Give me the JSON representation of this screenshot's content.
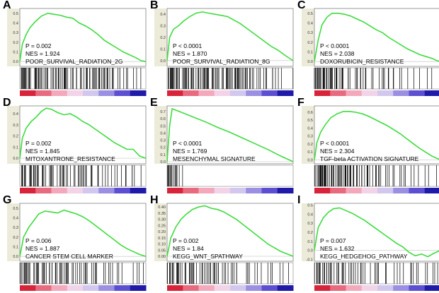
{
  "colors": {
    "curve": "#3ddc3d",
    "hit": "#000000",
    "grid": "#cfcfcf",
    "axis": "#808080",
    "panel_bg": "#ffffff",
    "axis_strip": "#ecebd9",
    "rank_colors": [
      "#d8243a",
      "#e86a7e",
      "#f3a9bb",
      "#f2d3e8",
      "#d2c8ef",
      "#9a8fe2",
      "#5d4fd2",
      "#1f1aa8"
    ]
  },
  "chart_data": [
    {
      "panel": "A",
      "type": "line",
      "yticks": [
        "0.5",
        "0.4",
        "0.3",
        "0.2",
        "0.1",
        "0.0"
      ],
      "ylim": [
        -0.05,
        0.55
      ],
      "p_text": "P = 0.002",
      "nes_text": "NES = 1.924",
      "gene_set": "POOR_SURVIVAL_RADIATION_2G",
      "x": [
        0,
        0.02,
        0.05,
        0.08,
        0.12,
        0.17,
        0.22,
        0.27,
        0.32,
        0.37,
        0.42,
        0.47,
        0.52,
        0.57,
        0.62,
        0.67,
        0.72,
        0.77,
        0.82,
        0.87,
        0.92,
        0.96,
        1.0
      ],
      "es": [
        0,
        0.18,
        0.28,
        0.35,
        0.41,
        0.47,
        0.5,
        0.49,
        0.48,
        0.46,
        0.45,
        0.4,
        0.37,
        0.33,
        0.28,
        0.22,
        0.18,
        0.14,
        0.1,
        0.07,
        0.04,
        0.01,
        0.0
      ],
      "hit_density": [
        0.9,
        0.6,
        0.8,
        0.5,
        0.4,
        0.5,
        0.6,
        0.7,
        0.4,
        0.4,
        0.5,
        0.6,
        0.8,
        0.7,
        0.4,
        0.3,
        0.2,
        0.1,
        0.2,
        0.1
      ]
    },
    {
      "panel": "B",
      "type": "line",
      "yticks": [
        "0.4",
        "0.3",
        "0.2",
        "0.1",
        "0.0"
      ],
      "ylim": [
        -0.05,
        0.45
      ],
      "p_text": "P < 0.0001",
      "nes_text": "NES = 1.870",
      "gene_set": "POOR_SURVIVAL_RADIATION_8G",
      "x": [
        0,
        0.02,
        0.05,
        0.09,
        0.13,
        0.18,
        0.23,
        0.28,
        0.33,
        0.38,
        0.43,
        0.48,
        0.53,
        0.58,
        0.63,
        0.68,
        0.73,
        0.78,
        0.83,
        0.88,
        0.93,
        0.97,
        1.0
      ],
      "es": [
        0,
        0.2,
        0.27,
        0.3,
        0.34,
        0.38,
        0.41,
        0.42,
        0.41,
        0.4,
        0.39,
        0.38,
        0.35,
        0.32,
        0.28,
        0.24,
        0.2,
        0.16,
        0.12,
        0.09,
        0.05,
        0.02,
        0.0
      ],
      "hit_density": [
        0.9,
        0.7,
        0.8,
        0.6,
        0.5,
        0.7,
        0.7,
        0.8,
        0.5,
        0.5,
        0.7,
        0.8,
        0.6,
        0.4,
        0.3,
        0.3,
        0.2,
        0.2,
        0.1,
        0.1
      ]
    },
    {
      "panel": "C",
      "type": "line",
      "yticks": [
        "0.5",
        "0.4",
        "0.3",
        "0.2",
        "0.1",
        "0.0"
      ],
      "ylim": [
        -0.05,
        0.55
      ],
      "p_text": "P < 0.0001",
      "nes_text": "NES = 2.038",
      "gene_set": "DOXORUBICIN_RESISTANCE",
      "x": [
        0,
        0.03,
        0.06,
        0.1,
        0.14,
        0.19,
        0.24,
        0.29,
        0.34,
        0.39,
        0.44,
        0.49,
        0.54,
        0.59,
        0.64,
        0.69,
        0.74,
        0.79,
        0.84,
        0.89,
        0.94,
        0.97,
        1.0
      ],
      "es": [
        0,
        0.22,
        0.38,
        0.46,
        0.5,
        0.5,
        0.49,
        0.47,
        0.44,
        0.41,
        0.37,
        0.33,
        0.3,
        0.25,
        0.21,
        0.17,
        0.13,
        0.1,
        0.07,
        0.05,
        0.03,
        0.01,
        0.0
      ],
      "hit_density": [
        0.95,
        0.9,
        0.7,
        0.5,
        0.4,
        0.3,
        0.3,
        0.25,
        0.2,
        0.2,
        0.3,
        0.25,
        0.15,
        0.2,
        0.1,
        0.1,
        0.1,
        0.05,
        0.1,
        0.05
      ]
    },
    {
      "panel": "D",
      "type": "line",
      "yticks": [
        "0.4",
        "0.3",
        "0.2",
        "0.1",
        "0.0"
      ],
      "ylim": [
        -0.05,
        0.47
      ],
      "p_text": "P = 0.002",
      "nes_text": "NES = 1.845",
      "gene_set": "MITOXANTRONE_RESISTANCE",
      "x": [
        0,
        0.02,
        0.05,
        0.09,
        0.13,
        0.17,
        0.21,
        0.25,
        0.3,
        0.35,
        0.4,
        0.45,
        0.5,
        0.55,
        0.6,
        0.65,
        0.7,
        0.75,
        0.8,
        0.85,
        0.9,
        0.95,
        1.0
      ],
      "es": [
        0,
        0.18,
        0.27,
        0.33,
        0.37,
        0.42,
        0.45,
        0.44,
        0.41,
        0.39,
        0.4,
        0.37,
        0.33,
        0.3,
        0.26,
        0.22,
        0.18,
        0.14,
        0.11,
        0.08,
        0.08,
        0.02,
        0.0
      ],
      "hit_density": [
        0.9,
        0.6,
        0.7,
        0.4,
        0.4,
        0.5,
        0.6,
        0.3,
        0.3,
        0.4,
        0.4,
        0.3,
        0.3,
        0.2,
        0.2,
        0.2,
        0.3,
        0.2,
        0.1,
        0.1
      ]
    },
    {
      "panel": "E",
      "type": "line",
      "yticks": [
        "0.7",
        "0.6",
        "0.5",
        "0.4",
        "0.3",
        "0.2",
        "0.1",
        "0.0"
      ],
      "ylim": [
        -0.03,
        0.78
      ],
      "p_text": "P < 0.0001",
      "nes_text": "NES = 1.769",
      "gene_set": "MESENCHYMAL SIGNATURE",
      "x": [
        0,
        0.02,
        0.04,
        0.1,
        0.2,
        0.3,
        0.4,
        0.5,
        0.6,
        0.7,
        0.8,
        0.9,
        1.0
      ],
      "es": [
        0,
        0.5,
        0.74,
        0.7,
        0.63,
        0.56,
        0.48,
        0.41,
        0.33,
        0.25,
        0.17,
        0.08,
        0.0
      ],
      "hit_density": [
        0.9,
        0.6,
        0.1,
        0,
        0,
        0,
        0,
        0,
        0,
        0,
        0,
        0,
        0,
        0,
        0,
        0,
        0,
        0,
        0,
        0
      ]
    },
    {
      "panel": "F",
      "type": "line",
      "yticks": [
        "0.6",
        "0.5",
        "0.4",
        "0.3",
        "0.2",
        "0.1",
        "0.0"
      ],
      "ylim": [
        -0.05,
        0.68
      ],
      "p_text": "P < 0.0001",
      "nes_text": "NES = 2.304",
      "gene_set": "TGF-beta  ACTIVATION SIGNATURE",
      "x": [
        0,
        0.02,
        0.05,
        0.09,
        0.13,
        0.18,
        0.23,
        0.28,
        0.33,
        0.38,
        0.43,
        0.48,
        0.53,
        0.58,
        0.63,
        0.68,
        0.73,
        0.78,
        0.83,
        0.88,
        0.93,
        0.97,
        1.0
      ],
      "es": [
        0,
        0.22,
        0.35,
        0.45,
        0.53,
        0.58,
        0.61,
        0.61,
        0.6,
        0.58,
        0.55,
        0.51,
        0.47,
        0.43,
        0.38,
        0.33,
        0.27,
        0.21,
        0.15,
        0.1,
        0.05,
        0.02,
        0.0
      ],
      "hit_density": [
        1.0,
        0.95,
        0.9,
        0.85,
        0.8,
        0.7,
        0.6,
        0.5,
        0.4,
        0.35,
        0.3,
        0.25,
        0.2,
        0.2,
        0.15,
        0.15,
        0.1,
        0.1,
        0.1,
        0.05
      ]
    },
    {
      "panel": "G",
      "type": "line",
      "yticks": [
        "0.5",
        "0.4",
        "0.3",
        "0.2",
        "0.1",
        "0.0"
      ],
      "ylim": [
        -0.05,
        0.55
      ],
      "p_text": "P = 0.006",
      "nes_text": "NES = 1.887",
      "gene_set": "CANCER STEM CELL MARKER",
      "x": [
        0,
        0.03,
        0.07,
        0.11,
        0.15,
        0.2,
        0.25,
        0.3,
        0.35,
        0.4,
        0.45,
        0.5,
        0.55,
        0.6,
        0.65,
        0.7,
        0.75,
        0.8,
        0.85,
        0.9,
        0.95,
        1.0
      ],
      "es": [
        0,
        0.2,
        0.3,
        0.37,
        0.44,
        0.47,
        0.46,
        0.45,
        0.48,
        0.46,
        0.44,
        0.41,
        0.37,
        0.32,
        0.27,
        0.22,
        0.17,
        0.12,
        0.08,
        0.05,
        0.02,
        0.0
      ],
      "hit_density": [
        0.8,
        0.5,
        0.6,
        0.4,
        0.3,
        0.5,
        0.4,
        0.6,
        0.3,
        0.3,
        0.4,
        0.3,
        0.2,
        0.2,
        0.3,
        0.2,
        0.1,
        0.1,
        0.2,
        0.1
      ]
    },
    {
      "panel": "H",
      "type": "line",
      "yticks": [
        "0.40",
        "0.35",
        "0.30",
        "0.25",
        "0.20",
        "0.15",
        "0.10",
        "0.05",
        "0.00"
      ],
      "ylim": [
        -0.04,
        0.43
      ],
      "p_text": "P = 0.002",
      "nes_text": "NES = 1.84",
      "gene_set": "KEGG_WNT_SPATHWAY",
      "x": [
        0,
        0.03,
        0.07,
        0.11,
        0.15,
        0.2,
        0.25,
        0.3,
        0.35,
        0.4,
        0.45,
        0.5,
        0.55,
        0.6,
        0.65,
        0.7,
        0.75,
        0.8,
        0.85,
        0.9,
        0.95,
        1.0
      ],
      "es": [
        0,
        0.15,
        0.24,
        0.3,
        0.34,
        0.38,
        0.4,
        0.41,
        0.39,
        0.38,
        0.36,
        0.33,
        0.3,
        0.26,
        0.22,
        0.18,
        0.14,
        0.1,
        0.07,
        0.04,
        0.02,
        0.0
      ],
      "hit_density": [
        0.7,
        0.6,
        0.5,
        0.5,
        0.4,
        0.4,
        0.5,
        0.4,
        0.3,
        0.3,
        0.3,
        0.2,
        0.3,
        0.2,
        0.2,
        0.1,
        0.2,
        0.1,
        0.1,
        0.1
      ]
    },
    {
      "panel": "I",
      "type": "line",
      "yticks": [
        "0.5",
        "0.4",
        "0.3",
        "0.2",
        "0.1",
        "0.0",
        "-0.1"
      ],
      "ylim": [
        -0.12,
        0.52
      ],
      "p_text": "P = 0.007",
      "nes_text": "NES = 1.632",
      "gene_set": "KEGG_HEDGEHOG_PATHWAY",
      "x": [
        0,
        0.03,
        0.07,
        0.11,
        0.15,
        0.2,
        0.25,
        0.3,
        0.35,
        0.4,
        0.45,
        0.5,
        0.55,
        0.6,
        0.65,
        0.7,
        0.75,
        0.8,
        0.85,
        0.9,
        0.95,
        1.0
      ],
      "es": [
        0,
        0.25,
        0.36,
        0.42,
        0.46,
        0.47,
        0.44,
        0.41,
        0.37,
        0.33,
        0.28,
        0.23,
        0.18,
        0.13,
        0.08,
        0.04,
        -0.02,
        -0.06,
        -0.04,
        -0.07,
        -0.03,
        0.0
      ],
      "hit_density": [
        0.8,
        0.6,
        0.5,
        0.4,
        0.4,
        0.3,
        0.3,
        0.3,
        0.2,
        0.2,
        0.2,
        0.2,
        0.1,
        0.2,
        0.1,
        0.3,
        0.2,
        0.2,
        0.1,
        0.2
      ]
    }
  ]
}
